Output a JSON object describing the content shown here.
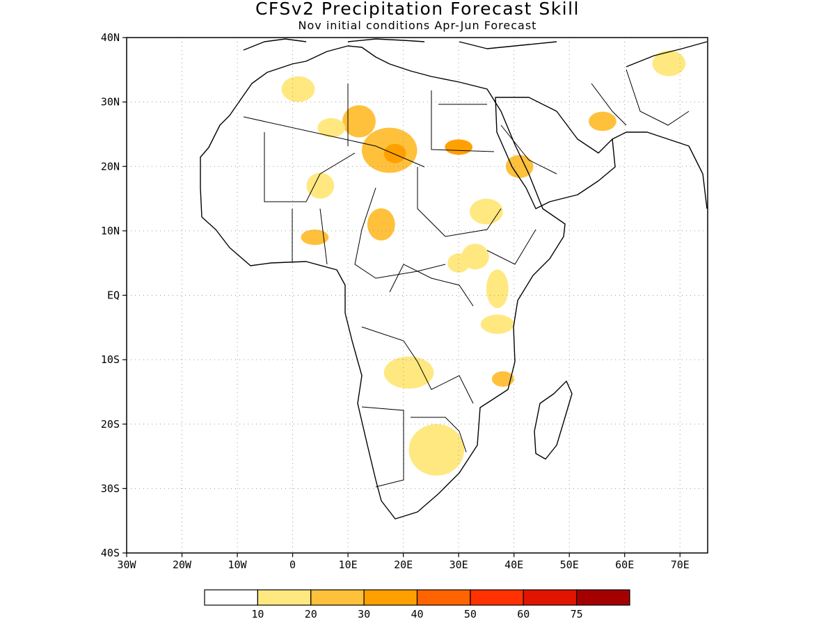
{
  "header": {
    "title": "CFSv2 Precipitation Forecast Skill",
    "subtitle": "Nov initial conditions  Apr-Jun Forecast"
  },
  "map": {
    "lon_range": [
      -30,
      75
    ],
    "lat_range": [
      -40,
      40
    ],
    "grid": true,
    "x_tick_labels": [
      "30W",
      "20W",
      "10W",
      "0",
      "10E",
      "20E",
      "30E",
      "40E",
      "50E",
      "60E",
      "70E"
    ],
    "x_tick_values": [
      -30,
      -20,
      -10,
      0,
      10,
      20,
      30,
      40,
      50,
      60,
      70
    ],
    "y_tick_labels": [
      "40N",
      "30N",
      "20N",
      "10N",
      "EQ",
      "10S",
      "20S",
      "30S",
      "40S"
    ],
    "y_tick_values": [
      40,
      30,
      20,
      10,
      0,
      -10,
      -20,
      -30,
      -40
    ]
  },
  "colorbar": {
    "labels": [
      "10",
      "20",
      "30",
      "40",
      "50",
      "60",
      "75"
    ],
    "colors": [
      "#ffffff",
      "#ffe880",
      "#ffc03c",
      "#ffa000",
      "#ff6400",
      "#ff3200",
      "#e11400",
      "#a50000"
    ]
  },
  "skill_areas": [
    {
      "lon": 1,
      "lat": 32,
      "rx": 3,
      "ry": 2,
      "level": 1
    },
    {
      "lon": 12,
      "lat": 27,
      "rx": 3,
      "ry": 2.5,
      "level": 2
    },
    {
      "lon": 17.5,
      "lat": 22.5,
      "rx": 5,
      "ry": 3.5,
      "level": 2
    },
    {
      "lon": 18.5,
      "lat": 22,
      "rx": 2,
      "ry": 1.5,
      "level": 3
    },
    {
      "lon": 30,
      "lat": 23,
      "rx": 2.5,
      "ry": 1.2,
      "level": 3
    },
    {
      "lon": 16,
      "lat": 11,
      "rx": 2.5,
      "ry": 2.5,
      "level": 2
    },
    {
      "lon": 4,
      "lat": 9,
      "rx": 2.5,
      "ry": 1.2,
      "level": 2
    },
    {
      "lon": 41,
      "lat": 20,
      "rx": 2.5,
      "ry": 1.8,
      "level": 2
    },
    {
      "lon": 56,
      "lat": 27,
      "rx": 2.5,
      "ry": 1.5,
      "level": 2
    },
    {
      "lon": 37,
      "lat": 1,
      "rx": 2,
      "ry": 3,
      "level": 1
    },
    {
      "lon": 38,
      "lat": -13,
      "rx": 2,
      "ry": 1.2,
      "level": 2
    },
    {
      "lon": 26,
      "lat": -24,
      "rx": 5,
      "ry": 4,
      "level": 1
    },
    {
      "lon": 21,
      "lat": -12,
      "rx": 4.5,
      "ry": 2.5,
      "level": 1
    },
    {
      "lon": 35,
      "lat": 13,
      "rx": 3,
      "ry": 2,
      "level": 1
    },
    {
      "lon": 33,
      "lat": 6,
      "rx": 2.5,
      "ry": 2,
      "level": 1
    },
    {
      "lon": 5,
      "lat": 17,
      "rx": 2.5,
      "ry": 2,
      "level": 1
    },
    {
      "lon": 68,
      "lat": 36,
      "rx": 3,
      "ry": 2,
      "level": 1
    },
    {
      "lon": 7,
      "lat": 26,
      "rx": 2.5,
      "ry": 1.5,
      "level": 1
    },
    {
      "lon": 30,
      "lat": 5,
      "rx": 2,
      "ry": 1.5,
      "level": 1
    },
    {
      "lon": 37,
      "lat": -4.5,
      "rx": 3,
      "ry": 1.5,
      "level": 1
    }
  ]
}
